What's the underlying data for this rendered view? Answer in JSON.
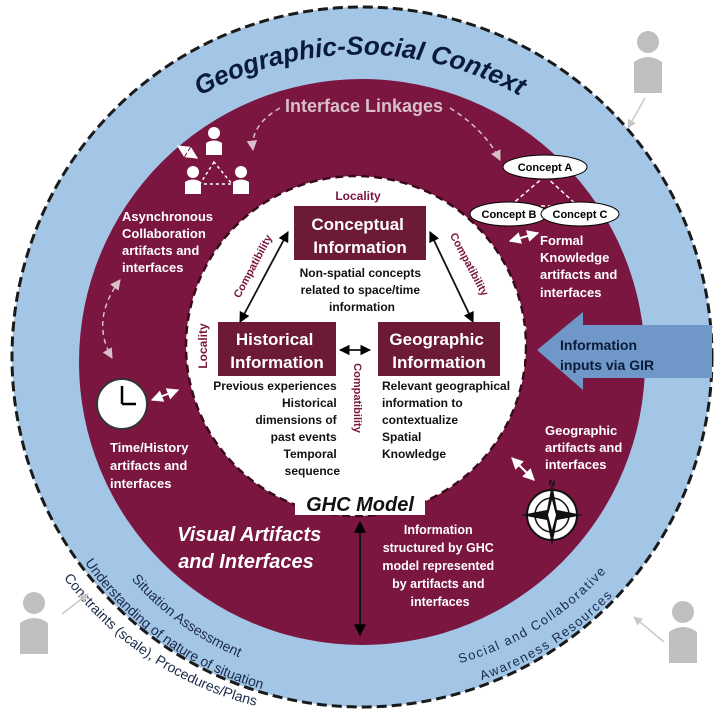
{
  "outer_title": "Geographic-Social Context",
  "interface_linkages": "Interface Linkages",
  "concepts": {
    "a": "Concept A",
    "b": "Concept B",
    "c": "Concept C"
  },
  "async_label": [
    "Asynchronous",
    "Collaboration",
    "artifacts and",
    "interfaces"
  ],
  "formal_label": [
    "Formal",
    "Knowledge",
    "artifacts and",
    "interfaces"
  ],
  "time_label": [
    "Time/History",
    "artifacts and",
    "interfaces"
  ],
  "geo_artifacts_label": [
    "Geographic",
    "artifacts and",
    "interfaces"
  ],
  "info_inputs": [
    "Information",
    "inputs via GIR"
  ],
  "locality": "Locality",
  "compatibility": "Compatibility",
  "conceptual": {
    "title": [
      "Conceptual",
      "Information"
    ],
    "desc": [
      "Non-spatial concepts",
      "related to space/time",
      "information"
    ]
  },
  "historical": {
    "title": [
      "Historical",
      "Information"
    ],
    "desc": [
      "Previous experiences",
      "Historical",
      "dimensions of",
      "past events",
      "Temporal",
      "sequence"
    ]
  },
  "geographic": {
    "title": [
      "Geographic",
      "Information"
    ],
    "desc": [
      "Relevant geographical",
      "information to",
      "contextualize",
      "Spatial",
      "Knowledge"
    ]
  },
  "ghc_model": "GHC Model",
  "visual_artifacts": [
    "Visual Artifacts",
    "and Interfaces"
  ],
  "structured_label": [
    "Information",
    "structured by GHC",
    "model represented",
    "by artifacts and",
    "interfaces"
  ],
  "situation": [
    "Situation Assessment",
    "Understanding of nature of situation",
    "Constraints (scale), Procedures/Plans"
  ],
  "social_resources": [
    "Social and Collaborative",
    "Awareness Resources"
  ],
  "colors": {
    "maroon": "#7b1640",
    "outer_blue": "#a3c6e6",
    "header_box": "#6d1a36",
    "arrow_blue": "#6f97c7",
    "person_gray": "#bfbfbf"
  }
}
